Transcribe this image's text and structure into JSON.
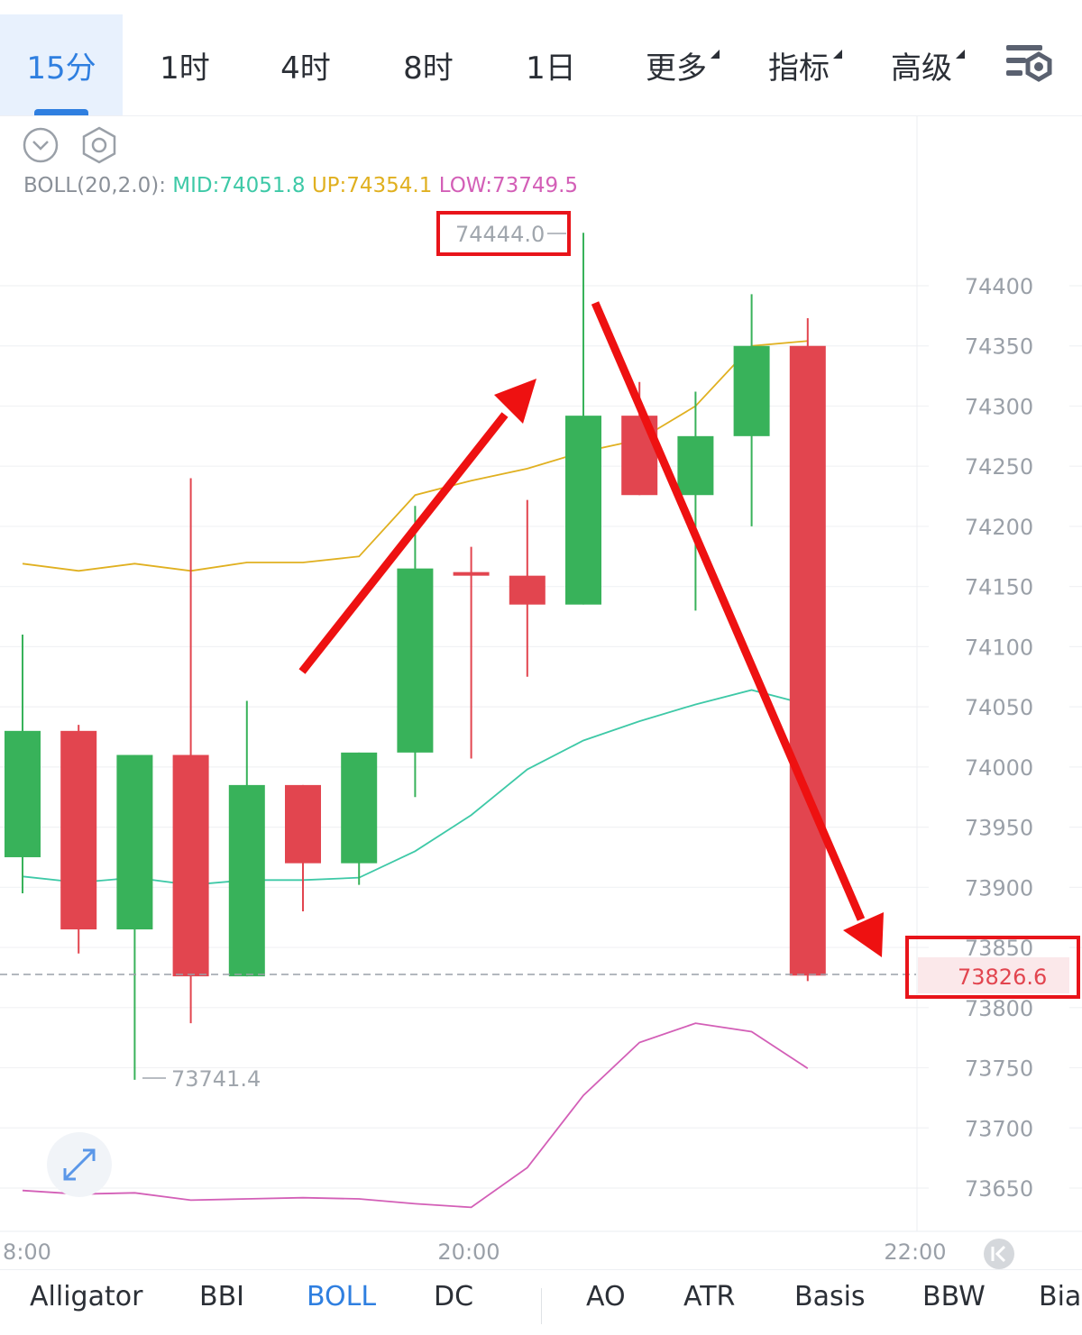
{
  "timeframe_tabs": [
    {
      "label": "15分",
      "active": true
    },
    {
      "label": "1时",
      "active": false
    },
    {
      "label": "4时",
      "active": false
    },
    {
      "label": "8时",
      "active": false
    },
    {
      "label": "1日",
      "active": false
    },
    {
      "label": "更多",
      "active": false,
      "dropdown": true
    },
    {
      "label": "指标",
      "active": false,
      "dropdown": true
    },
    {
      "label": "高级",
      "active": false,
      "dropdown": true
    }
  ],
  "boll": {
    "name": "BOLL(20,2.0):",
    "mid_label": "MID:",
    "mid_value": "74051.8",
    "up_label": "UP:",
    "up_value": "74354.1",
    "low_label": "LOW:",
    "low_value": "73749.5",
    "colors": {
      "mid": "#3ec9a7",
      "up": "#e0b020",
      "low": "#d35fb7"
    }
  },
  "annotations": {
    "high_marker": "74444.0",
    "low_marker": "73741.4",
    "current_price": "73826.6"
  },
  "colors": {
    "up_candle": "#38b25a",
    "down_candle": "#e2454f",
    "highlight_box": "#e8141a",
    "accent": "#2f7fe0"
  },
  "indicator_tabs": [
    {
      "label": "Alligator",
      "active": false
    },
    {
      "label": "BBI",
      "active": false
    },
    {
      "label": "BOLL",
      "active": true
    },
    {
      "label": "DC",
      "active": false
    },
    {
      "label": "AO",
      "active": false
    },
    {
      "label": "ATR",
      "active": false
    },
    {
      "label": "Basis",
      "active": false
    },
    {
      "label": "BBW",
      "active": false
    },
    {
      "label": "Bias",
      "active": false
    }
  ],
  "chart_data": {
    "type": "candlestick",
    "y_ticks": [
      74400,
      74350,
      74300,
      74250,
      74200,
      74150,
      74100,
      74050,
      74000,
      73950,
      73900,
      73850,
      73800,
      73750,
      73700,
      73650
    ],
    "ylim": [
      73625,
      74500
    ],
    "x_ticks": [
      "8:00",
      "20:00",
      "22:00"
    ],
    "candles": [
      {
        "open": 73925,
        "high": 74110,
        "low": 73895,
        "close": 74030
      },
      {
        "open": 74030,
        "high": 74035,
        "low": 73845,
        "close": 73865
      },
      {
        "open": 73865,
        "high": 74010,
        "low": 73740,
        "close": 74010
      },
      {
        "open": 74010,
        "high": 74240,
        "low": 73787,
        "close": 73826
      },
      {
        "open": 73826,
        "high": 74055,
        "low": 73826,
        "close": 73985
      },
      {
        "open": 73985,
        "high": 73985,
        "low": 73880,
        "close": 73920
      },
      {
        "open": 73920,
        "high": 74012,
        "low": 73902,
        "close": 74012
      },
      {
        "open": 74012,
        "high": 74217,
        "low": 73975,
        "close": 74165
      },
      {
        "open": 74162,
        "high": 74183,
        "low": 74007,
        "close": 74159
      },
      {
        "open": 74159,
        "high": 74222,
        "low": 74075,
        "close": 74135
      },
      {
        "open": 74135,
        "high": 74444,
        "low": 74135,
        "close": 74292
      },
      {
        "open": 74292,
        "high": 74320,
        "low": 74226,
        "close": 74226
      },
      {
        "open": 74226,
        "high": 74312,
        "low": 74130,
        "close": 74275
      },
      {
        "open": 74275,
        "high": 74393,
        "low": 74200,
        "close": 74350
      },
      {
        "open": 74350,
        "high": 74373,
        "low": 73822,
        "close": 73826.6
      }
    ],
    "series": [
      {
        "name": "UP",
        "values": [
          74169,
          74163,
          74169,
          74163,
          74170,
          74170,
          74175,
          74226,
          74238,
          74248,
          74262,
          74272,
          74300,
          74350,
          74354.1
        ]
      },
      {
        "name": "MID",
        "values": [
          73909,
          73904,
          73908,
          73902,
          73906,
          73906,
          73908,
          73930,
          73960,
          73998,
          74022,
          74038,
          74052,
          74064,
          74051.8
        ]
      },
      {
        "name": "LOW",
        "values": [
          73648,
          73645,
          73646,
          73640,
          73641,
          73642,
          73641,
          73637,
          73634,
          73667,
          73727,
          73771,
          73787,
          73780,
          73749.5
        ]
      }
    ],
    "current_price": 73826.6,
    "annotations": [
      "up arrow",
      "down arrow"
    ]
  }
}
